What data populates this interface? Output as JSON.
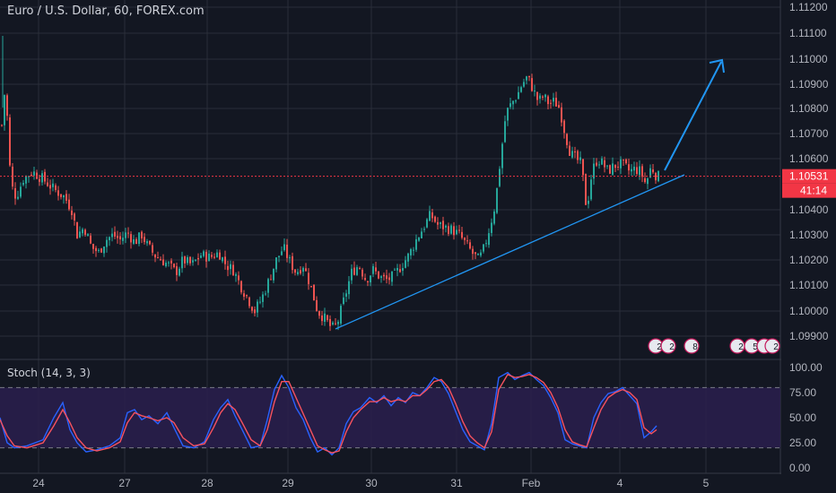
{
  "header": {
    "symbol_title": "Euro / U.S. Dollar, 60, FOREX.com"
  },
  "price_axis": {
    "ticks": [
      "1.11200",
      "1.11100",
      "1.11000",
      "1.10900",
      "1.10800",
      "1.10700",
      "1.10600",
      "1.10400",
      "1.10300",
      "1.10200",
      "1.10100",
      "1.10000",
      "1.09900"
    ],
    "last_price": "1.10531",
    "countdown": "41:14",
    "last_price_color": "#f23645"
  },
  "stoch": {
    "title": "Stoch (14, 3, 3)",
    "ticks": [
      "100.00",
      "75.00",
      "50.00",
      "25.00",
      "0.00"
    ],
    "band_upper": 80,
    "band_lower": 20,
    "k_color": "#2962ff",
    "d_color": "#f7525f",
    "band_color": "#2a1e4e"
  },
  "time_axis": {
    "labels": [
      "24",
      "27",
      "28",
      "29",
      "30",
      "31",
      "Feb",
      "4",
      "5"
    ]
  },
  "events": [
    {
      "label": "2"
    },
    {
      "label": "2"
    },
    {
      "label": "8"
    },
    {
      "label": "2"
    },
    {
      "label": "5"
    },
    {
      "label": "7"
    },
    {
      "label": "2"
    }
  ],
  "colors": {
    "up": "#26a69a",
    "down": "#ef5350",
    "trendline": "#2196f3",
    "background": "#131722",
    "grid": "#2a2e39",
    "text": "#b2b5be"
  },
  "chart_data": {
    "type": "candlestick",
    "title": "Euro / U.S. Dollar, 60, FOREX.com",
    "ylim": [
      1.0985,
      1.1123
    ],
    "x_labels": [
      "24",
      "27",
      "28",
      "29",
      "30",
      "31",
      "Feb",
      "4",
      "5"
    ],
    "price_path": [
      [
        0,
        1.1065
      ],
      [
        6,
        1.109
      ],
      [
        12,
        1.105
      ],
      [
        18,
        1.1045
      ],
      [
        26,
        1.1052
      ],
      [
        36,
        1.1055
      ],
      [
        48,
        1.1052
      ],
      [
        60,
        1.1048
      ],
      [
        72,
        1.1045
      ],
      [
        80,
        1.104
      ],
      [
        86,
        1.103
      ],
      [
        94,
        1.1033
      ],
      [
        102,
        1.1025
      ],
      [
        110,
        1.1023
      ],
      [
        118,
        1.1028
      ],
      [
        126,
        1.103
      ],
      [
        134,
        1.1028
      ],
      [
        142,
        1.1031
      ],
      [
        150,
        1.1027
      ],
      [
        158,
        1.103
      ],
      [
        164,
        1.1026
      ],
      [
        172,
        1.1022
      ],
      [
        180,
        1.102
      ],
      [
        188,
        1.1018
      ],
      [
        196,
        1.1015
      ],
      [
        204,
        1.102
      ],
      [
        214,
        1.1018
      ],
      [
        224,
        1.1022
      ],
      [
        234,
        1.1021
      ],
      [
        244,
        1.1023
      ],
      [
        252,
        1.1018
      ],
      [
        260,
        1.1016
      ],
      [
        268,
        1.101
      ],
      [
        276,
        1.1005
      ],
      [
        284,
        1.1
      ],
      [
        292,
        1.1005
      ],
      [
        300,
        1.1012
      ],
      [
        308,
        1.102
      ],
      [
        316,
        1.1025
      ],
      [
        322,
        1.102
      ],
      [
        330,
        1.1015
      ],
      [
        338,
        1.1018
      ],
      [
        346,
        1.101
      ],
      [
        354,
        1.1
      ],
      [
        362,
        1.0997
      ],
      [
        370,
        1.0993
      ],
      [
        376,
        1.0995
      ],
      [
        384,
        1.1005
      ],
      [
        392,
        1.1015
      ],
      [
        400,
        1.1018
      ],
      [
        408,
        1.1012
      ],
      [
        416,
        1.1016
      ],
      [
        424,
        1.1013
      ],
      [
        432,
        1.1012
      ],
      [
        440,
        1.1014
      ],
      [
        448,
        1.1018
      ],
      [
        456,
        1.1022
      ],
      [
        464,
        1.1028
      ],
      [
        472,
        1.1033
      ],
      [
        480,
        1.1038
      ],
      [
        488,
        1.1034
      ],
      [
        496,
        1.1033
      ],
      [
        504,
        1.1032
      ],
      [
        512,
        1.103
      ],
      [
        520,
        1.1026
      ],
      [
        528,
        1.1022
      ],
      [
        534,
        1.102
      ],
      [
        540,
        1.1025
      ],
      [
        546,
        1.1033
      ],
      [
        552,
        1.1042
      ],
      [
        558,
        1.106
      ],
      [
        564,
        1.1078
      ],
      [
        570,
        1.1082
      ],
      [
        576,
        1.1085
      ],
      [
        582,
        1.109
      ],
      [
        588,
        1.1093
      ],
      [
        594,
        1.1088
      ],
      [
        600,
        1.1083
      ],
      [
        606,
        1.1085
      ],
      [
        612,
        1.1082
      ],
      [
        618,
        1.1083
      ],
      [
        624,
        1.108
      ],
      [
        630,
        1.107
      ],
      [
        636,
        1.1062
      ],
      [
        642,
        1.106
      ],
      [
        648,
        1.1058
      ],
      [
        654,
        1.104
      ],
      [
        660,
        1.1055
      ],
      [
        666,
        1.106
      ],
      [
        672,
        1.1058
      ],
      [
        678,
        1.1055
      ],
      [
        684,
        1.1057
      ],
      [
        690,
        1.1058
      ],
      [
        696,
        1.1057
      ],
      [
        702,
        1.1055
      ],
      [
        708,
        1.1056
      ],
      [
        714,
        1.1055
      ],
      [
        720,
        1.105
      ],
      [
        726,
        1.1057
      ],
      [
        732,
        1.1053
      ]
    ],
    "trendline": {
      "start": [
        "29",
        1.0993
      ],
      "end": [
        "4",
        1.1052
      ]
    },
    "projection_arrow": {
      "start": [
        "4",
        1.1058
      ],
      "end": [
        "4 → 5",
        1.11
      ]
    },
    "stoch_series": {
      "k": [
        [
          0,
          50
        ],
        [
          8,
          25
        ],
        [
          16,
          20
        ],
        [
          30,
          22
        ],
        [
          48,
          28
        ],
        [
          60,
          50
        ],
        [
          70,
          65
        ],
        [
          78,
          38
        ],
        [
          86,
          25
        ],
        [
          96,
          16
        ],
        [
          108,
          18
        ],
        [
          122,
          22
        ],
        [
          134,
          30
        ],
        [
          142,
          55
        ],
        [
          150,
          58
        ],
        [
          158,
          48
        ],
        [
          166,
          52
        ],
        [
          176,
          44
        ],
        [
          186,
          55
        ],
        [
          194,
          40
        ],
        [
          204,
          22
        ],
        [
          216,
          20
        ],
        [
          228,
          26
        ],
        [
          238,
          48
        ],
        [
          246,
          60
        ],
        [
          254,
          68
        ],
        [
          262,
          52
        ],
        [
          270,
          38
        ],
        [
          280,
          20
        ],
        [
          290,
          22
        ],
        [
          298,
          48
        ],
        [
          306,
          78
        ],
        [
          314,
          92
        ],
        [
          322,
          80
        ],
        [
          330,
          60
        ],
        [
          338,
          48
        ],
        [
          346,
          30
        ],
        [
          354,
          16
        ],
        [
          362,
          20
        ],
        [
          370,
          13
        ],
        [
          378,
          20
        ],
        [
          386,
          44
        ],
        [
          394,
          56
        ],
        [
          402,
          60
        ],
        [
          412,
          70
        ],
        [
          420,
          65
        ],
        [
          428,
          72
        ],
        [
          436,
          62
        ],
        [
          444,
          70
        ],
        [
          452,
          65
        ],
        [
          460,
          75
        ],
        [
          468,
          72
        ],
        [
          476,
          80
        ],
        [
          484,
          90
        ],
        [
          492,
          86
        ],
        [
          500,
          74
        ],
        [
          508,
          56
        ],
        [
          516,
          38
        ],
        [
          524,
          26
        ],
        [
          532,
          22
        ],
        [
          540,
          18
        ],
        [
          548,
          44
        ],
        [
          556,
          90
        ],
        [
          566,
          95
        ],
        [
          574,
          88
        ],
        [
          582,
          92
        ],
        [
          590,
          95
        ],
        [
          598,
          88
        ],
        [
          606,
          82
        ],
        [
          614,
          70
        ],
        [
          622,
          55
        ],
        [
          630,
          28
        ],
        [
          638,
          24
        ],
        [
          646,
          22
        ],
        [
          654,
          20
        ],
        [
          662,
          50
        ],
        [
          670,
          65
        ],
        [
          678,
          74
        ],
        [
          686,
          76
        ],
        [
          694,
          80
        ],
        [
          702,
          72
        ],
        [
          710,
          64
        ],
        [
          718,
          30
        ],
        [
          726,
          36
        ],
        [
          732,
          42
        ]
      ],
      "d": [
        [
          0,
          48
        ],
        [
          8,
          32
        ],
        [
          16,
          22
        ],
        [
          30,
          20
        ],
        [
          48,
          25
        ],
        [
          60,
          42
        ],
        [
          70,
          58
        ],
        [
          78,
          45
        ],
        [
          86,
          30
        ],
        [
          96,
          20
        ],
        [
          108,
          17
        ],
        [
          122,
          20
        ],
        [
          134,
          26
        ],
        [
          142,
          45
        ],
        [
          150,
          55
        ],
        [
          158,
          52
        ],
        [
          166,
          50
        ],
        [
          176,
          47
        ],
        [
          186,
          50
        ],
        [
          194,
          45
        ],
        [
          204,
          30
        ],
        [
          216,
          22
        ],
        [
          228,
          24
        ],
        [
          238,
          40
        ],
        [
          246,
          55
        ],
        [
          254,
          64
        ],
        [
          262,
          58
        ],
        [
          270,
          45
        ],
        [
          280,
          28
        ],
        [
          290,
          22
        ],
        [
          298,
          38
        ],
        [
          306,
          66
        ],
        [
          314,
          86
        ],
        [
          322,
          86
        ],
        [
          330,
          70
        ],
        [
          338,
          54
        ],
        [
          346,
          38
        ],
        [
          354,
          22
        ],
        [
          362,
          18
        ],
        [
          370,
          15
        ],
        [
          378,
          17
        ],
        [
          386,
          36
        ],
        [
          394,
          50
        ],
        [
          402,
          58
        ],
        [
          412,
          66
        ],
        [
          420,
          66
        ],
        [
          428,
          70
        ],
        [
          436,
          66
        ],
        [
          444,
          68
        ],
        [
          452,
          66
        ],
        [
          460,
          72
        ],
        [
          468,
          72
        ],
        [
          476,
          78
        ],
        [
          484,
          86
        ],
        [
          492,
          88
        ],
        [
          500,
          80
        ],
        [
          508,
          64
        ],
        [
          516,
          46
        ],
        [
          524,
          32
        ],
        [
          532,
          25
        ],
        [
          540,
          20
        ],
        [
          548,
          36
        ],
        [
          556,
          78
        ],
        [
          566,
          93
        ],
        [
          574,
          90
        ],
        [
          582,
          91
        ],
        [
          590,
          93
        ],
        [
          598,
          90
        ],
        [
          606,
          85
        ],
        [
          614,
          75
        ],
        [
          622,
          60
        ],
        [
          630,
          38
        ],
        [
          638,
          26
        ],
        [
          646,
          23
        ],
        [
          654,
          21
        ],
        [
          662,
          40
        ],
        [
          670,
          58
        ],
        [
          678,
          70
        ],
        [
          686,
          75
        ],
        [
          694,
          78
        ],
        [
          702,
          75
        ],
        [
          710,
          68
        ],
        [
          718,
          40
        ],
        [
          726,
          34
        ],
        [
          732,
          38
        ]
      ]
    }
  }
}
